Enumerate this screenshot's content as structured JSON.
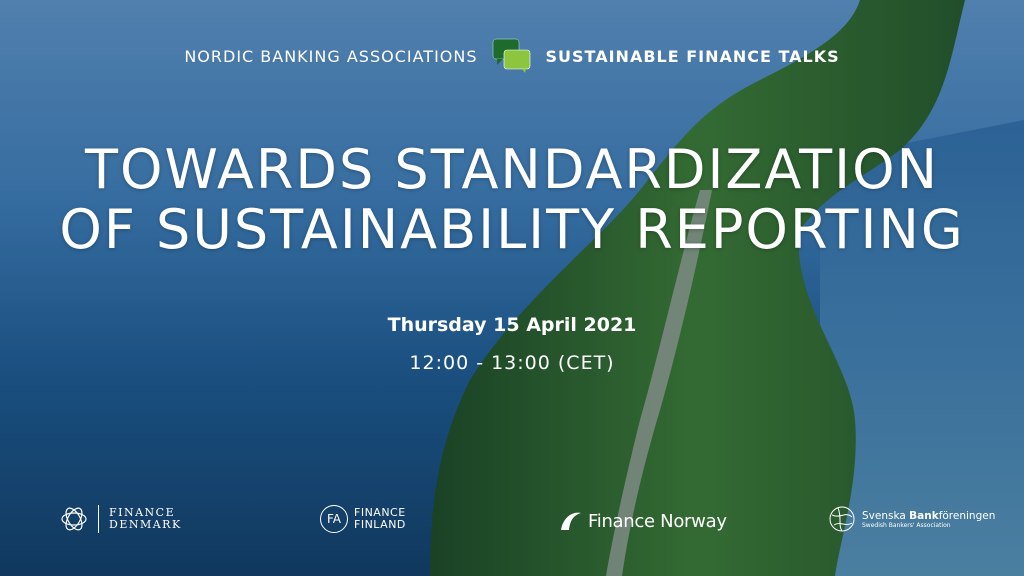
{
  "header": {
    "left": "NORDIC BANKING ASSOCIATIONS",
    "right": "SUSTAINABLE FINANCE TALKS",
    "icon": "speech-bubbles-icon",
    "colors": {
      "bubble_dark": "#1e6b2e",
      "bubble_light": "#8cc63f"
    }
  },
  "title": {
    "line1": "TOWARDS STANDARDIZATION",
    "line2": "OF SUSTAINABILITY REPORTING"
  },
  "event": {
    "date": "Thursday 15 April 2021",
    "time": "12:00 - 13:00 (CET)"
  },
  "logos": {
    "denmark": {
      "line1": "FINANCE",
      "line2": "DENMARK"
    },
    "finland": {
      "mark": "FA",
      "line1": "FINANCE",
      "line2": "FINLAND"
    },
    "norway": {
      "name": "Finance Norway"
    },
    "sweden": {
      "name_a": "Svenska ",
      "name_b": "Bank",
      "name_c": "föreningen",
      "sub": "Swedish Bankers' Association"
    }
  }
}
